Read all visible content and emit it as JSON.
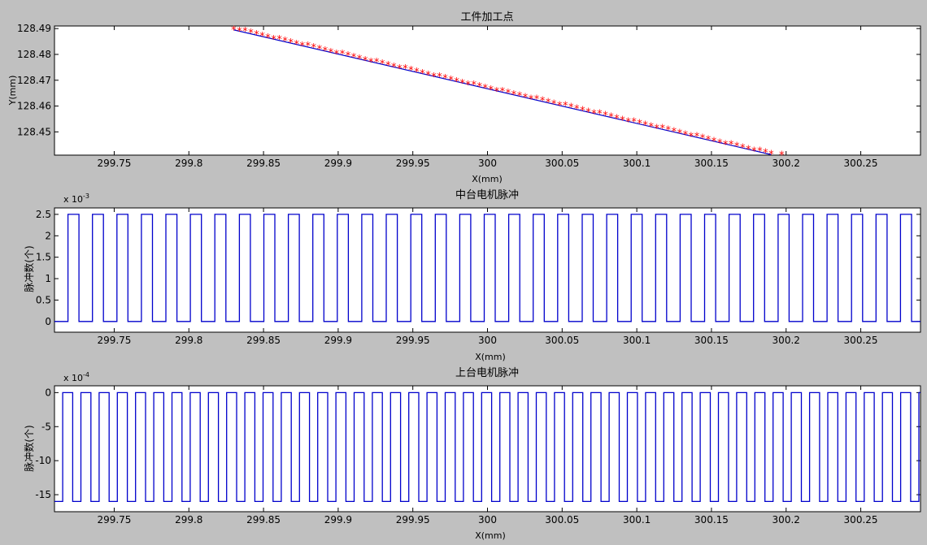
{
  "colors": {
    "figure_background": "#c0c0c0",
    "axes_background": "#ffffff",
    "line": "#0000cc",
    "marker": "#ff0000"
  },
  "chart_data": [
    {
      "type": "scatter",
      "title": "工件加工点",
      "xlabel": "X(mm)",
      "ylabel": "Y(mm)",
      "xlim": [
        299.71,
        300.29
      ],
      "ylim": [
        128.441,
        128.491
      ],
      "xticks": [
        299.75,
        299.8,
        299.85,
        299.9,
        299.95,
        300,
        300.05,
        300.1,
        300.15,
        300.2,
        300.25
      ],
      "xtick_labels": [
        "299.75",
        "299.8",
        "299.85",
        "299.9",
        "299.95",
        "300",
        "300.05",
        "300.1",
        "300.15",
        "300.2",
        "300.25"
      ],
      "yticks": [
        128.45,
        128.46,
        128.47,
        128.48,
        128.49
      ],
      "ytick_labels": [
        "128.45",
        "128.46",
        "128.47",
        "128.48",
        "128.49"
      ],
      "grid": false,
      "line": {
        "x": [
          299.83,
          300.19
        ],
        "y": [
          128.4895,
          128.4412
        ]
      },
      "markers": {
        "symbol": "*",
        "x_start": 299.83,
        "x_end": 300.19,
        "count": 95,
        "y_start": 128.4895,
        "y_end": 128.4412,
        "step_y": 0.0025
      },
      "last_point": {
        "x": 300.197,
        "y": 128.4415
      }
    },
    {
      "type": "line",
      "title": "中台电机脉冲",
      "xlabel": "X(mm)",
      "ylabel": "脉冲数(个)",
      "y_exponent": "x 10",
      "y_exponent_power": "-3",
      "xlim": [
        299.71,
        300.29
      ],
      "ylim": [
        -0.00025,
        0.00265
      ],
      "xticks": [
        299.75,
        299.8,
        299.85,
        299.9,
        299.95,
        300,
        300.05,
        300.1,
        300.15,
        300.2,
        300.25
      ],
      "xtick_labels": [
        "299.75",
        "299.8",
        "299.85",
        "299.9",
        "299.95",
        "300",
        "300.05",
        "300.1",
        "300.15",
        "300.2",
        "300.25"
      ],
      "yticks": [
        0,
        0.0005,
        0.001,
        0.0015,
        0.002,
        0.0025
      ],
      "ytick_labels": [
        "0",
        "0.5",
        "1",
        "1.5",
        "2",
        "2.5"
      ],
      "grid": false,
      "pulse": {
        "low": 0,
        "high": 0.0025,
        "x_start": 299.71,
        "x_end": 300.29,
        "period": 0.0164,
        "duty": 0.45
      }
    },
    {
      "type": "line",
      "title": "上台电机脉冲",
      "xlabel": "X(mm)",
      "ylabel": "脉冲数(个)",
      "y_exponent": "x 10",
      "y_exponent_power": "-4",
      "xlim": [
        299.71,
        300.29
      ],
      "ylim": [
        -0.00175,
        0.0001
      ],
      "xticks": [
        299.75,
        299.8,
        299.85,
        299.9,
        299.95,
        300,
        300.05,
        300.1,
        300.15,
        300.2,
        300.25
      ],
      "xtick_labels": [
        "299.75",
        "299.8",
        "299.85",
        "299.9",
        "299.95",
        "300",
        "300.05",
        "300.1",
        "300.15",
        "300.2",
        "300.25"
      ],
      "yticks": [
        -0.0015,
        -0.001,
        -0.0005,
        0
      ],
      "ytick_labels": [
        "-15",
        "-10",
        "-5",
        "0"
      ],
      "grid": false,
      "pulse": {
        "low": -0.0016,
        "high": 0,
        "x_start": 299.71,
        "x_end": 300.29,
        "period": 0.0122,
        "duty": 0.55
      }
    }
  ]
}
